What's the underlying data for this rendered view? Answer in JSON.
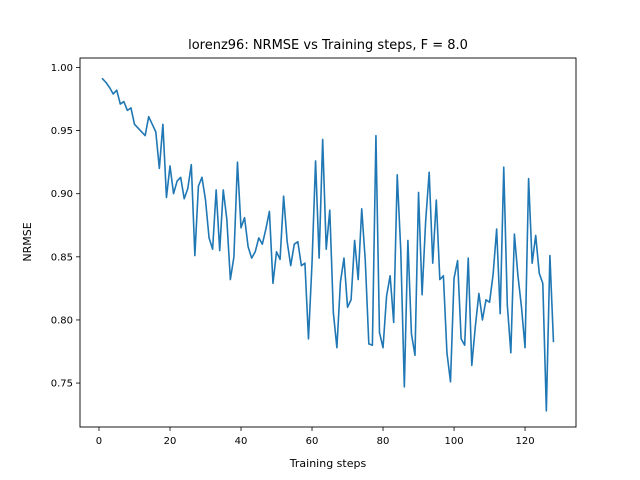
{
  "chart_data": {
    "type": "line",
    "title": "lorenz96: NRMSE vs Training steps, F = 8.0",
    "xlabel": "Training steps",
    "ylabel": "NRMSE",
    "xlim": [
      -5.35,
      134.35
    ],
    "ylim": [
      0.7152,
      1.0075
    ],
    "xticks": [
      "0",
      "20",
      "40",
      "60",
      "80",
      "100",
      "120"
    ],
    "yticks": [
      "0.75",
      "0.80",
      "0.85",
      "0.90",
      "0.95",
      "1.00"
    ],
    "grid": false,
    "series": [
      {
        "color": "#1f77b4",
        "x": [
          1,
          2,
          3,
          4,
          5,
          6,
          7,
          8,
          9,
          10,
          11,
          12,
          13,
          14,
          15,
          16,
          17,
          18,
          19,
          20,
          21,
          22,
          23,
          24,
          25,
          26,
          27,
          28,
          29,
          30,
          31,
          32,
          33,
          34,
          35,
          36,
          37,
          38,
          39,
          40,
          41,
          42,
          43,
          44,
          45,
          46,
          47,
          48,
          49,
          50,
          51,
          52,
          53,
          54,
          55,
          56,
          57,
          58,
          59,
          60,
          61,
          62,
          63,
          64,
          65,
          66,
          67,
          68,
          69,
          70,
          71,
          72,
          73,
          74,
          75,
          76,
          77,
          78,
          79,
          80,
          81,
          82,
          83,
          84,
          85,
          86,
          87,
          88,
          89,
          90,
          91,
          92,
          93,
          94,
          95,
          96,
          97,
          98,
          99,
          100,
          101,
          102,
          103,
          104,
          105,
          106,
          107,
          108,
          109,
          110,
          111,
          112,
          113,
          114,
          115,
          116,
          117,
          118,
          119,
          120,
          121,
          122,
          123,
          124,
          125,
          126,
          127,
          128
        ],
        "values": [
          0.991,
          0.988,
          0.984,
          0.979,
          0.982,
          0.971,
          0.973,
          0.966,
          0.968,
          0.955,
          0.952,
          0.949,
          0.946,
          0.961,
          0.955,
          0.949,
          0.92,
          0.955,
          0.897,
          0.922,
          0.9,
          0.91,
          0.913,
          0.896,
          0.904,
          0.923,
          0.851,
          0.906,
          0.913,
          0.895,
          0.865,
          0.856,
          0.903,
          0.855,
          0.903,
          0.88,
          0.832,
          0.85,
          0.925,
          0.873,
          0.881,
          0.858,
          0.849,
          0.854,
          0.865,
          0.86,
          0.872,
          0.886,
          0.829,
          0.854,
          0.848,
          0.898,
          0.862,
          0.843,
          0.86,
          0.862,
          0.843,
          0.845,
          0.785,
          0.845,
          0.926,
          0.849,
          0.943,
          0.856,
          0.887,
          0.806,
          0.778,
          0.83,
          0.849,
          0.81,
          0.816,
          0.863,
          0.832,
          0.888,
          0.847,
          0.781,
          0.78,
          0.946,
          0.79,
          0.778,
          0.819,
          0.835,
          0.798,
          0.915,
          0.855,
          0.747,
          0.863,
          0.789,
          0.772,
          0.901,
          0.82,
          0.878,
          0.917,
          0.845,
          0.895,
          0.832,
          0.835,
          0.774,
          0.751,
          0.833,
          0.847,
          0.785,
          0.78,
          0.849,
          0.764,
          0.795,
          0.821,
          0.8,
          0.816,
          0.814,
          0.836,
          0.872,
          0.805,
          0.921,
          0.812,
          0.774,
          0.868,
          0.835,
          0.81,
          0.778,
          0.912,
          0.845,
          0.867,
          0.837,
          0.829,
          0.728,
          0.851,
          0.783
        ]
      }
    ]
  }
}
